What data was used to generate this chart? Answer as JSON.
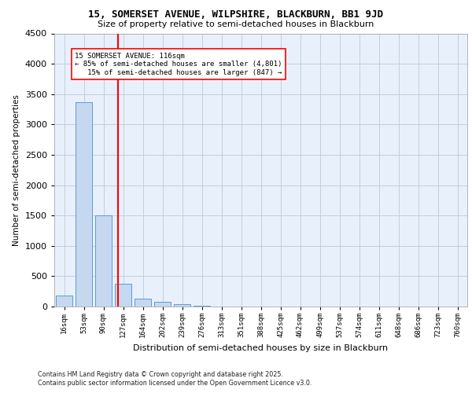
{
  "title1": "15, SOMERSET AVENUE, WILPSHIRE, BLACKBURN, BB1 9JD",
  "title2": "Size of property relative to semi-detached houses in Blackburn",
  "xlabel": "Distribution of semi-detached houses by size in Blackburn",
  "ylabel": "Number of semi-detached properties",
  "bin_labels": [
    "16sqm",
    "53sqm",
    "90sqm",
    "127sqm",
    "164sqm",
    "202sqm",
    "239sqm",
    "276sqm",
    "313sqm",
    "351sqm",
    "388sqm",
    "425sqm",
    "462sqm",
    "499sqm",
    "537sqm",
    "574sqm",
    "611sqm",
    "648sqm",
    "686sqm",
    "723sqm",
    "760sqm"
  ],
  "bar_heights": [
    175,
    3370,
    1500,
    375,
    130,
    75,
    40,
    8,
    3,
    2,
    1,
    0,
    0,
    0,
    0,
    0,
    0,
    0,
    0,
    0,
    0
  ],
  "bar_color": "#c5d8f0",
  "bar_edge_color": "#5b9bd5",
  "ylim": [
    0,
    4500
  ],
  "yticks": [
    0,
    500,
    1000,
    1500,
    2000,
    2500,
    3000,
    3500,
    4000,
    4500
  ],
  "red_line_bin": 3,
  "annotation_title": "15 SOMERSET AVENUE: 116sqm",
  "annotation_line1": "← 85% of semi-detached houses are smaller (4,801)",
  "annotation_line2": "15% of semi-detached houses are larger (847) →",
  "footer1": "Contains HM Land Registry data © Crown copyright and database right 2025.",
  "footer2": "Contains public sector information licensed under the Open Government Licence v3.0.",
  "bg_color": "#e8f0fb",
  "grid_color": "#c0c8d8"
}
